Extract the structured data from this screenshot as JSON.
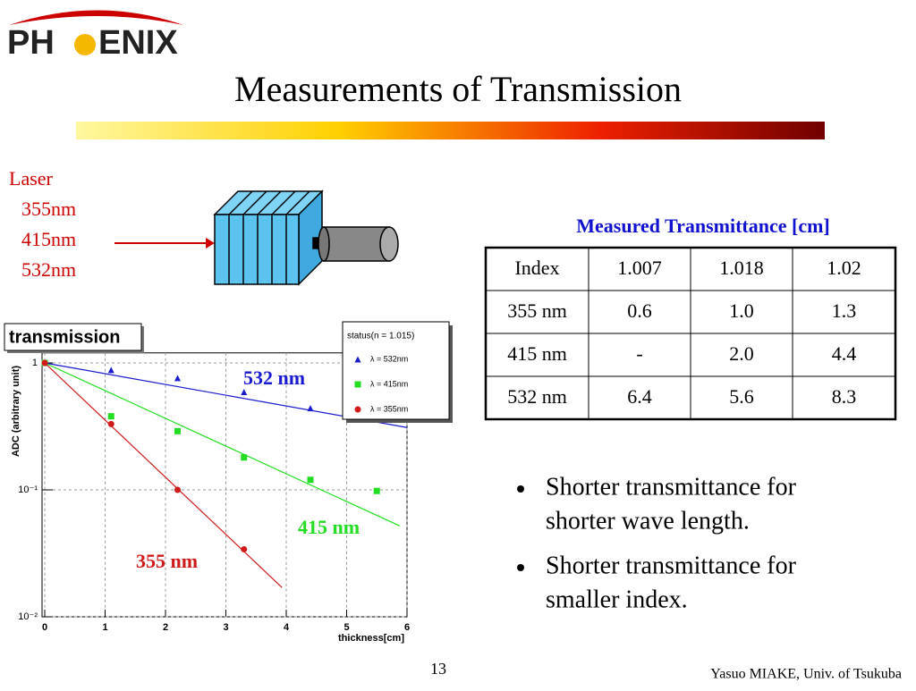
{
  "logo": {
    "left": "PH",
    "right": "ENIX"
  },
  "title": "Measurements of Transmission",
  "laser": {
    "label": "Laser",
    "wavelengths": [
      "355nm",
      "415nm",
      "532nm"
    ]
  },
  "table": {
    "caption": "Measured Transmittance [cm]",
    "rows": [
      [
        "Index",
        "1.007",
        "1.018",
        "1.02"
      ],
      [
        "355 nm",
        "0.6",
        "1.0",
        "1.3"
      ],
      [
        "415 nm",
        "-",
        "2.0",
        "4.4"
      ],
      [
        "532 nm",
        "6.4",
        "5.6",
        "8.3"
      ]
    ]
  },
  "bullets": [
    [
      "Shorter transmittance for",
      "shorter wave length."
    ],
    [
      "Shorter transmittance for",
      "smaller index."
    ]
  ],
  "footer": {
    "page": "13",
    "author": "Yasuo MIAKE, Univ. of Tsukuba"
  },
  "chart_data": {
    "type": "scatter",
    "title": "transmission",
    "x_label": "thickness[cm]",
    "y_label": "ADC (arbitrary unit)",
    "legend_title": "status(n = 1.015)",
    "legend": "upper right",
    "log_y": true,
    "grid": true,
    "xlim": [
      0,
      6
    ],
    "xticks": [
      0,
      1,
      2,
      3,
      4,
      5,
      6
    ],
    "ylim": [
      0.01,
      1.2
    ],
    "yticks": [
      {
        "value": 1,
        "label": "1"
      },
      {
        "value": 0.1,
        "label": "10⁻¹"
      },
      {
        "value": 0.01,
        "label": "10⁻²"
      }
    ],
    "annotations": [
      "532 nm",
      "415 nm",
      "355 nm"
    ],
    "series": [
      {
        "name": "λ = 532nm",
        "color": "#1a1ad0",
        "marker": "triangle",
        "x": [
          0,
          1.1,
          2.2,
          3.3,
          4.4
        ],
        "values": [
          1,
          0.88,
          0.76,
          0.59,
          0.44
        ],
        "fit_x": [
          0,
          6
        ],
        "fit_values": [
          1,
          0.31
        ]
      },
      {
        "name": "λ = 415nm",
        "color": "#22dd22",
        "marker": "square",
        "x": [
          0,
          1.1,
          2.2,
          3.3,
          4.4,
          5.5
        ],
        "values": [
          1,
          0.38,
          0.29,
          0.18,
          0.12,
          0.098
        ],
        "fit_x": [
          0,
          5.88
        ],
        "fit_values": [
          1,
          0.052
        ]
      },
      {
        "name": "λ = 355nm",
        "color": "#d01a1a",
        "marker": "circle",
        "x": [
          0,
          1.1,
          2.2,
          3.3
        ],
        "values": [
          1,
          0.33,
          0.1,
          0.034
        ],
        "fit_x": [
          0,
          3.93
        ],
        "fit_values": [
          1,
          0.017
        ]
      }
    ]
  }
}
